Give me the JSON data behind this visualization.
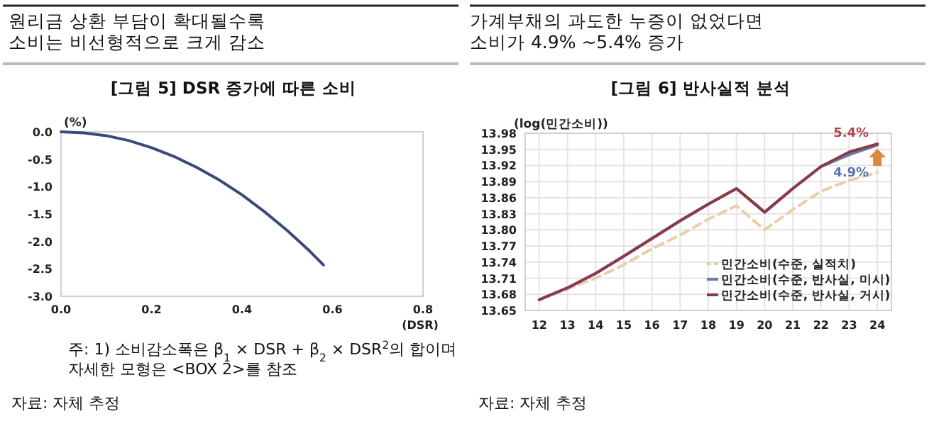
{
  "chart_data": [
    {
      "type": "line",
      "subtitle": "원리금 상환 부담이 확대될수록\n소비는 비선형적으로 크게 감소",
      "title": "[그림 5] DSR 증가에 따른 소비",
      "xlabel": "(DSR)",
      "ylabel": "(%)",
      "x": [
        0,
        0.05,
        0.1,
        0.15,
        0.2,
        0.25,
        0.3,
        0.35,
        0.4,
        0.45,
        0.5,
        0.55,
        0.58
      ],
      "series": [
        {
          "color": "#3b4a7a",
          "values": [
            0,
            -0.02,
            -0.07,
            -0.16,
            -0.29,
            -0.45,
            -0.65,
            -0.88,
            -1.15,
            -1.46,
            -1.8,
            -2.18,
            -2.43
          ]
        }
      ],
      "xlim": [
        0,
        0.8
      ],
      "xticks": [
        {
          "value": 0,
          "label": "0.0"
        },
        0.2,
        0.4,
        0.6,
        0.8
      ],
      "ylim": [
        -3,
        0
      ],
      "yticks": [
        {
          "value": -3,
          "label": "-3.0"
        },
        -2.5,
        {
          "value": -2,
          "label": "-2.0"
        },
        -1.5,
        {
          "value": -1,
          "label": "-1.0"
        },
        -0.5,
        {
          "value": 0,
          "label": "0.0"
        }
      ],
      "annotations": [
        "주: 1) 소비감소폭은 β$_{1}$ × DSR + β$_{2}$ × DSR$^{2}$의 합이며\n자세한 모형은 <BOX 2>를 참조",
        "자료: 자체 추정"
      ]
    },
    {
      "type": "line",
      "subtitle": "가계부채의 과도한 누증이 없었다면\n소비가 4.9% ~5.4% 증가",
      "title": "[그림 6] 반사실적 분석",
      "ylabel": "(log(민간소비))",
      "categories": [
        "12",
        "13",
        "14",
        "15",
        "16",
        "17",
        "18",
        "19",
        "20",
        "21",
        "22",
        "23",
        "24"
      ],
      "series": [
        {
          "name": "민간소비(수준, 실적치)",
          "color": "#e9cfa8",
          "line_style": "dashed",
          "values": [
            13.67,
            13.69,
            13.71,
            13.735,
            13.765,
            13.79,
            13.82,
            13.845,
            13.8,
            13.838,
            13.872,
            13.892,
            13.907
          ]
        },
        {
          "name": "민간소비(수준, 반사실, 미시)",
          "color": "#6a7bb0",
          "values": [
            13.67,
            13.692,
            13.719,
            13.751,
            13.784,
            13.817,
            13.848,
            13.877,
            13.833,
            13.877,
            13.918,
            13.94,
            13.958
          ]
        },
        {
          "name": "민간소비(수준, 반사실, 거시)",
          "color": "#8b3a4a",
          "values": [
            13.67,
            13.692,
            13.719,
            13.751,
            13.784,
            13.817,
            13.848,
            13.877,
            13.833,
            13.877,
            13.918,
            13.945,
            13.96
          ]
        }
      ],
      "ylim": [
        13.65,
        13.98
      ],
      "yticks": [
        13.65,
        13.68,
        13.71,
        13.74,
        13.77,
        {
          "value": 13.8,
          "label": "13.80"
        },
        13.83,
        13.86,
        13.89,
        13.92,
        13.95,
        13.98
      ],
      "grid": true,
      "legend": "bottom right",
      "annotations": [
        {
          "text": "5.4%",
          "x": "24",
          "y": 13.96
        },
        {
          "text": "4.9%",
          "x": "24",
          "y": 13.958
        },
        "자료: 자체 추정"
      ]
    }
  ]
}
